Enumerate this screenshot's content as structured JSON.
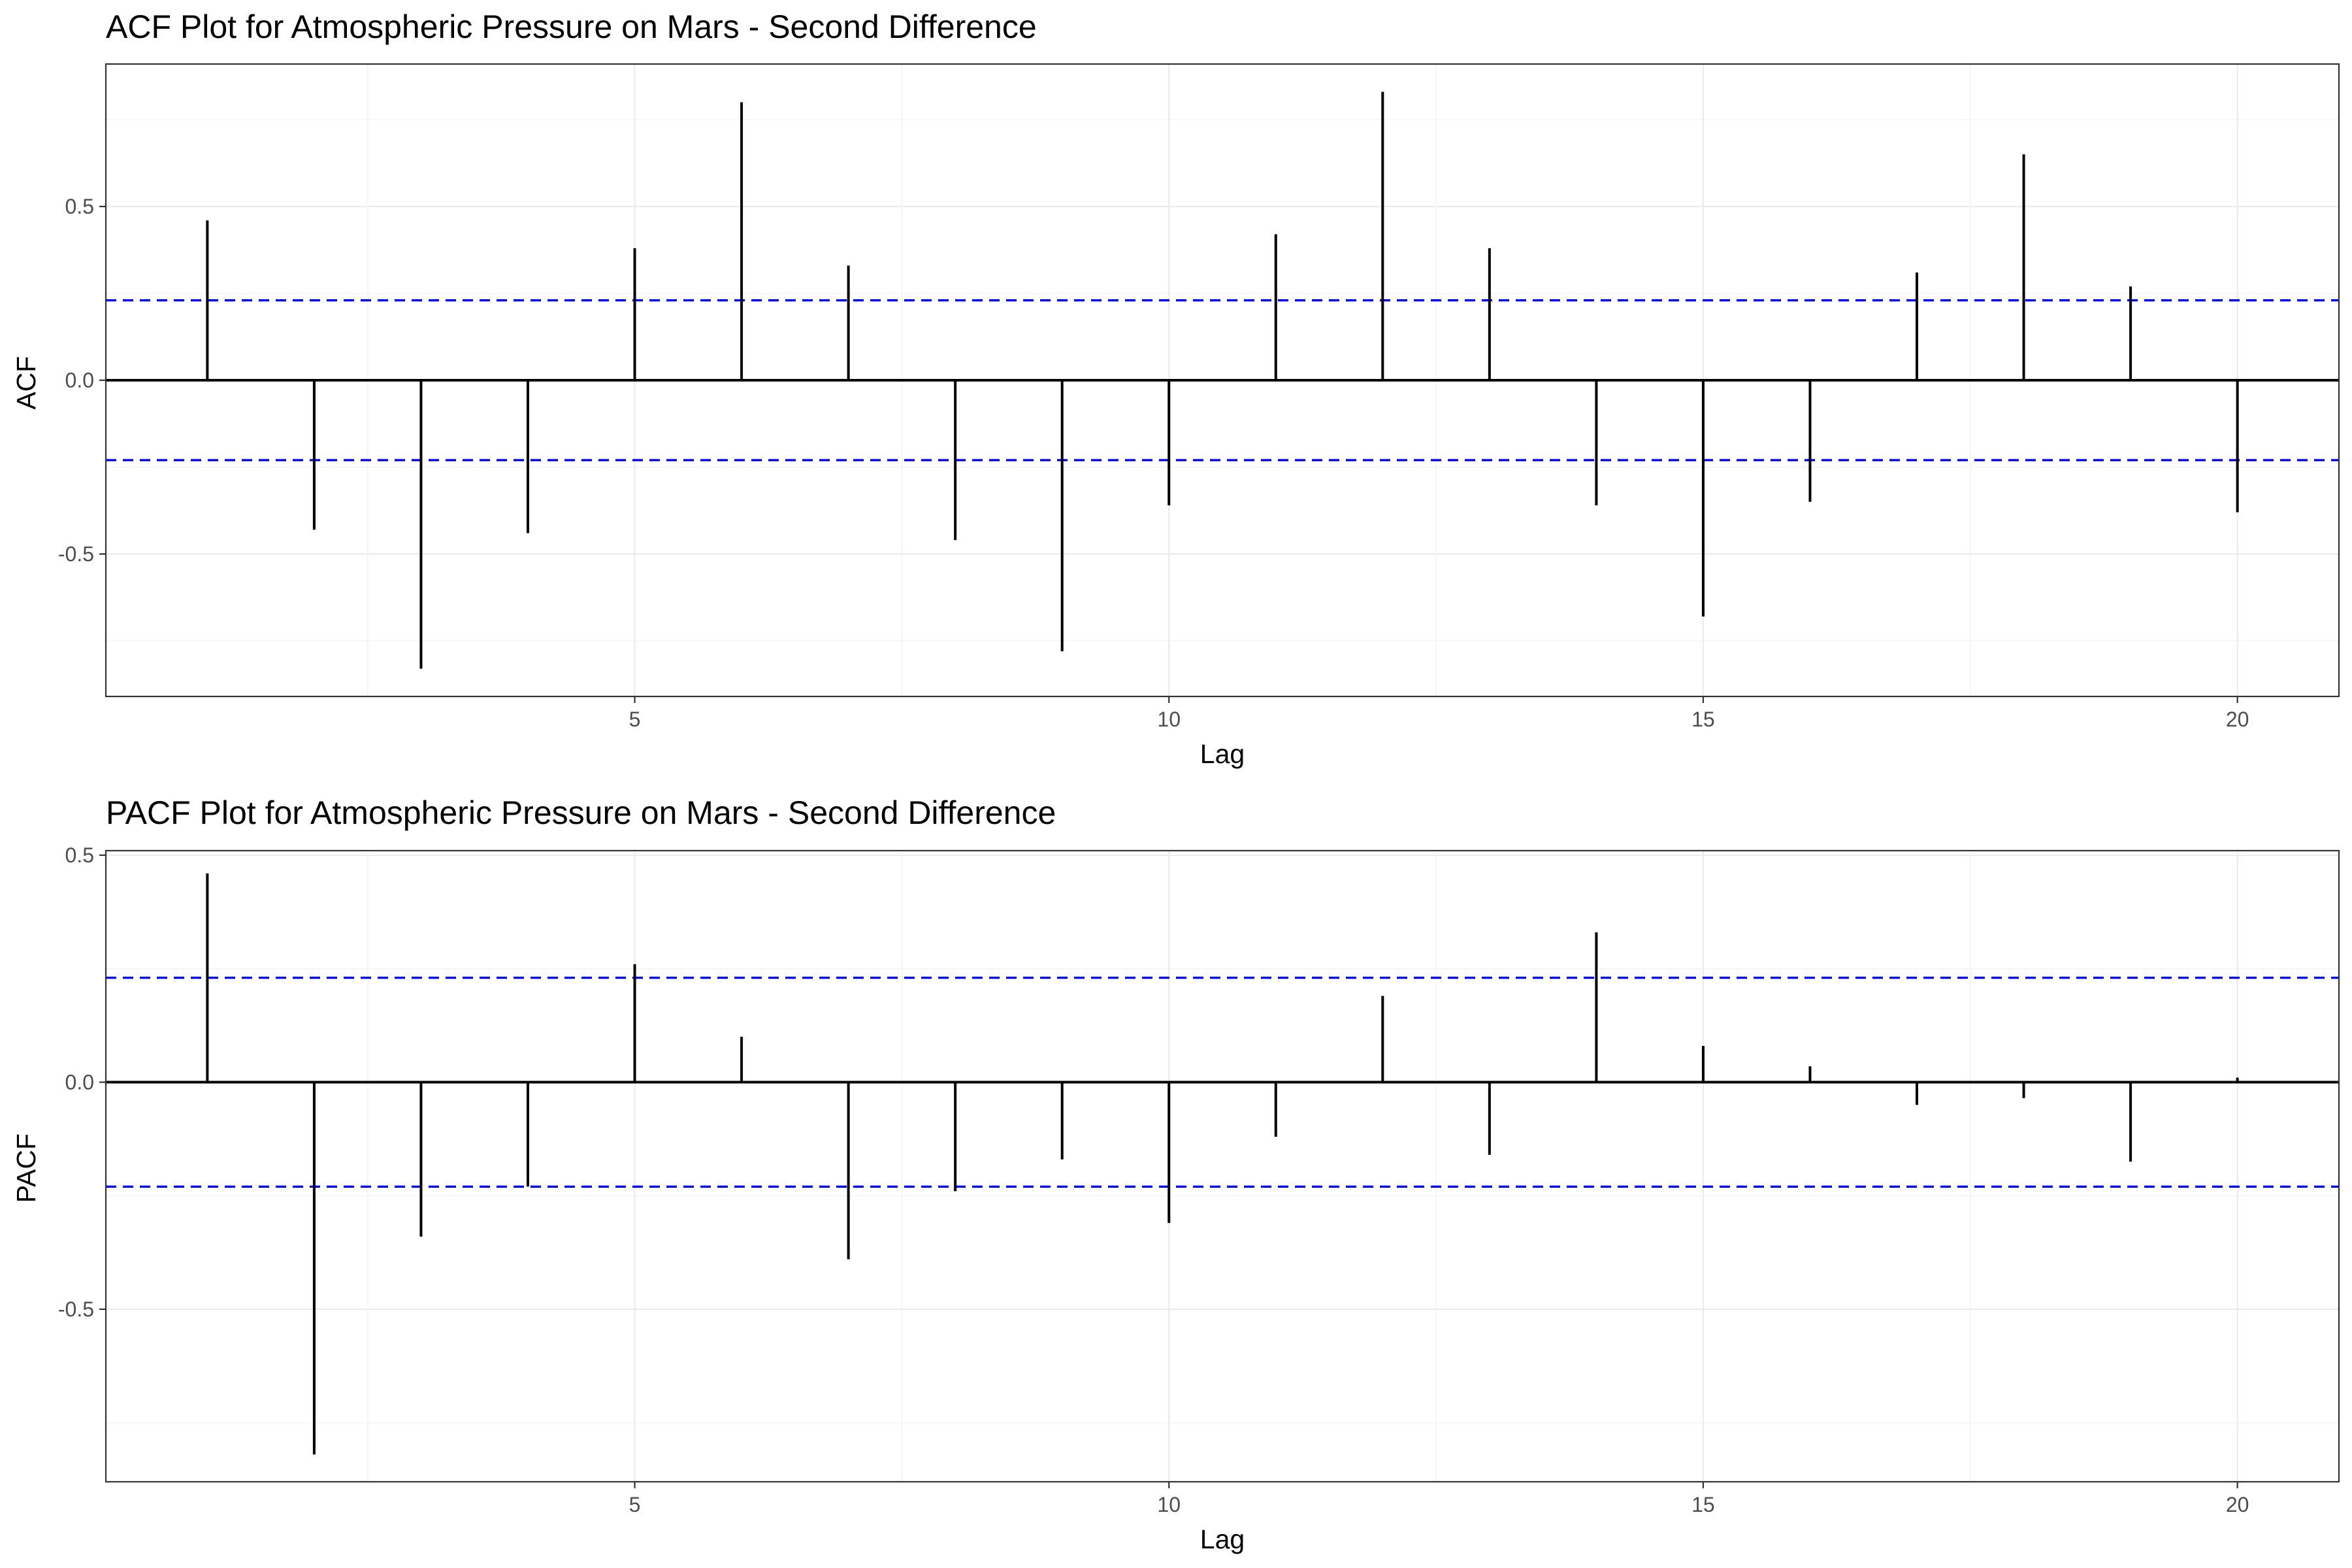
{
  "chart_data": [
    {
      "type": "bar",
      "subtype": "acf-lollipop",
      "title": "ACF Plot for Atmospheric Pressure on Mars - Second Difference",
      "xlabel": "Lag",
      "ylabel": "ACF",
      "x": [
        1,
        2,
        3,
        4,
        5,
        6,
        7,
        8,
        9,
        10,
        11,
        12,
        13,
        14,
        15,
        16,
        17,
        18,
        19,
        20
      ],
      "values": [
        0.46,
        -0.43,
        -0.83,
        -0.44,
        0.38,
        0.8,
        0.33,
        -0.46,
        -0.78,
        -0.36,
        0.42,
        0.83,
        0.38,
        -0.36,
        -0.68,
        -0.35,
        0.31,
        0.65,
        0.27,
        -0.38
      ],
      "confidence_bound": 0.23,
      "ci_color": "#0000ff",
      "xlim": [
        0.05,
        20.95
      ],
      "ylim": [
        -0.91,
        0.91
      ],
      "x_ticks": [
        5,
        10,
        15,
        20
      ],
      "x_tick_labels": [
        "5",
        "10",
        "15",
        "20"
      ],
      "y_ticks": [
        -0.5,
        0.0,
        0.5
      ],
      "y_tick_labels": [
        "-0.5",
        "0.0",
        "0.5"
      ],
      "grid": true
    },
    {
      "type": "bar",
      "subtype": "pacf-lollipop",
      "title": "PACF Plot for Atmospheric Pressure on Mars - Second Difference",
      "xlabel": "Lag",
      "ylabel": "PACF",
      "x": [
        1,
        2,
        3,
        4,
        5,
        6,
        7,
        8,
        9,
        10,
        11,
        12,
        13,
        14,
        15,
        16,
        17,
        18,
        19,
        20
      ],
      "values": [
        0.46,
        -0.82,
        -0.34,
        -0.23,
        0.26,
        0.1,
        -0.39,
        -0.24,
        -0.17,
        -0.31,
        -0.12,
        0.19,
        -0.16,
        0.33,
        0.08,
        0.035,
        -0.05,
        -0.035,
        -0.175,
        0.01
      ],
      "confidence_bound": 0.23,
      "ci_color": "#0000ff",
      "xlim": [
        0.05,
        20.95
      ],
      "ylim": [
        -0.88,
        0.51
      ],
      "x_ticks": [
        5,
        10,
        15,
        20
      ],
      "x_tick_labels": [
        "5",
        "10",
        "15",
        "20"
      ],
      "y_ticks": [
        -0.5,
        0.0,
        0.5
      ],
      "y_tick_labels": [
        "-0.5",
        "0.0",
        "0.5"
      ],
      "grid": true
    }
  ]
}
